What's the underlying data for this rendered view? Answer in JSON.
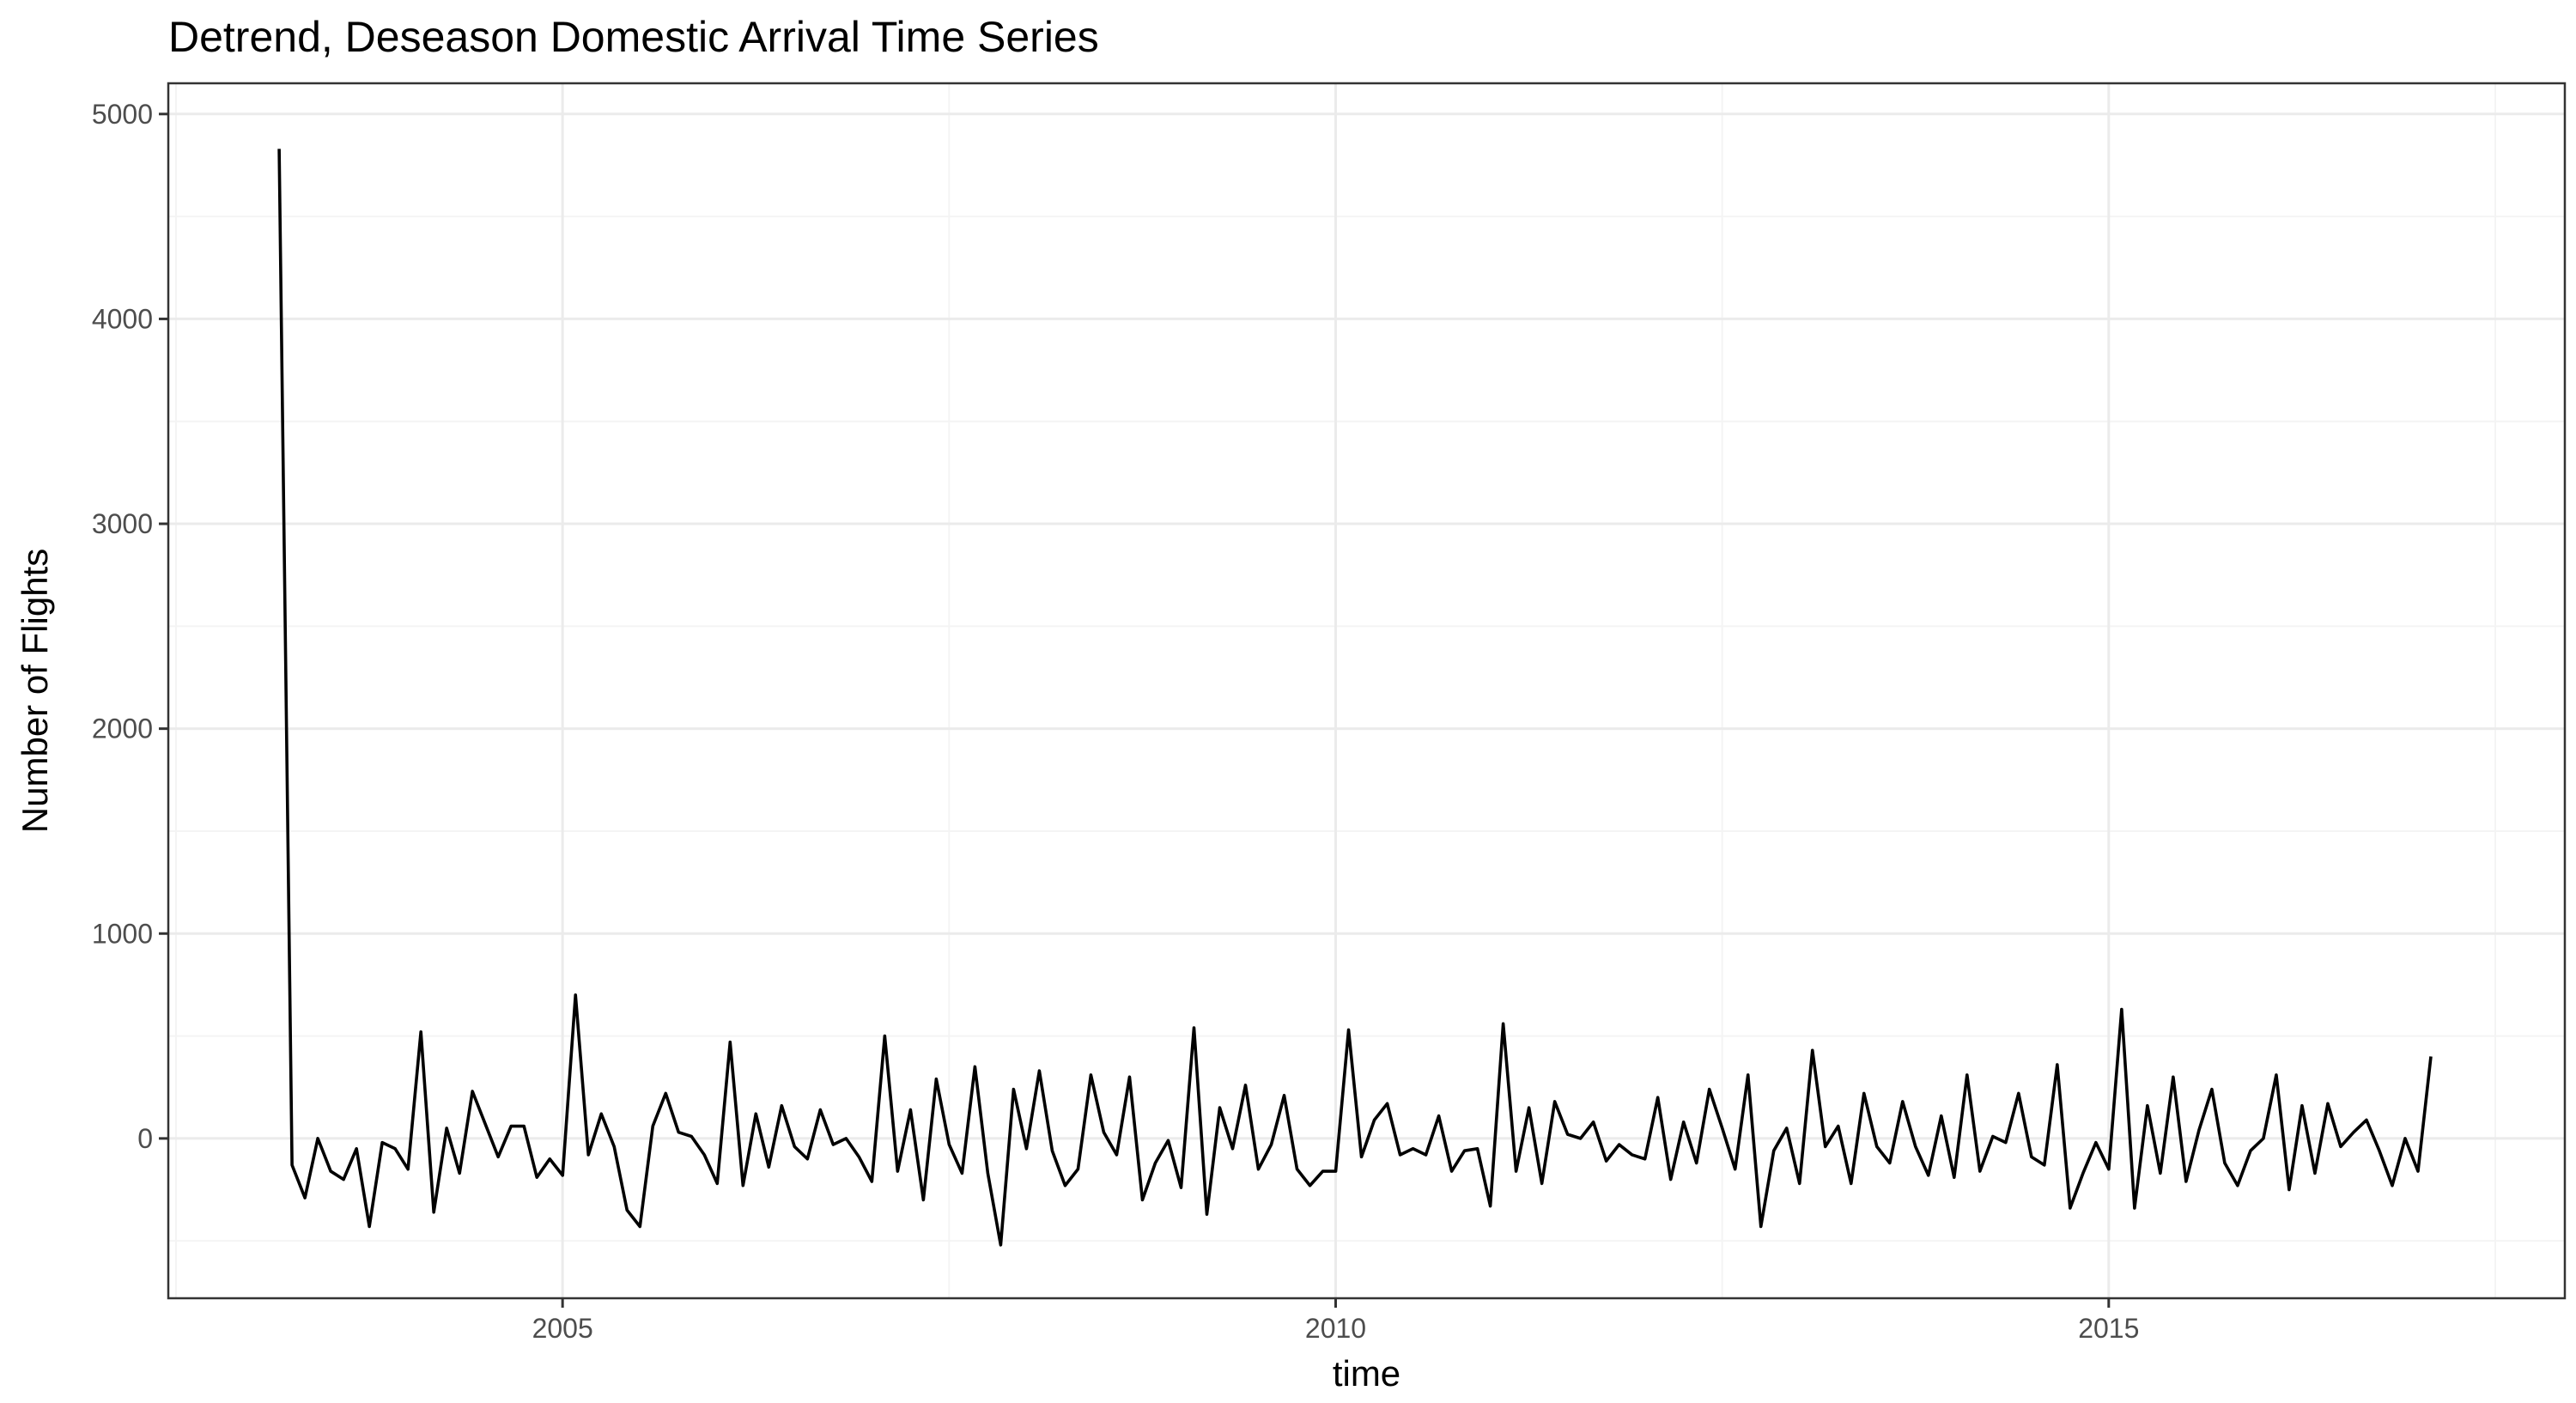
{
  "chart_data": {
    "type": "line",
    "title": "Detrend, Deseason  Domestic Arrival Time Series",
    "xlabel": "time",
    "ylabel": "Number of Flights",
    "x_start": 2003.167,
    "x_step": 0.0833333,
    "xlim": [
      2002.45,
      2017.95
    ],
    "ylim": [
      -780,
      5150
    ],
    "x_ticks": [
      2005,
      2010,
      2015
    ],
    "x_tick_labels": [
      "2005",
      "2010",
      "2015"
    ],
    "y_ticks": [
      0,
      1000,
      2000,
      3000,
      4000,
      5000
    ],
    "y_tick_labels": [
      "0",
      "1000",
      "2000",
      "3000",
      "4000",
      "5000"
    ],
    "grid": true,
    "legend": "none",
    "line_color": "#000000",
    "series": [
      {
        "values": [
          4830,
          -130,
          -290,
          0,
          -160,
          -200,
          -50,
          -430,
          -20,
          -50,
          -150,
          520,
          -360,
          50,
          -170,
          230,
          70,
          -90,
          60,
          60,
          -190,
          -100,
          -180,
          700,
          -80,
          120,
          -40,
          -350,
          -430,
          60,
          220,
          30,
          10,
          -80,
          -220,
          470,
          -230,
          120,
          -140,
          160,
          -40,
          -100,
          140,
          -30,
          0,
          -90,
          -210,
          500,
          -160,
          140,
          -300,
          290,
          -30,
          -170,
          350,
          -170,
          -520,
          240,
          -50,
          330,
          -60,
          -230,
          -150,
          310,
          30,
          -80,
          300,
          -300,
          -120,
          -10,
          -240,
          540,
          -370,
          150,
          -50,
          260,
          -150,
          -30,
          210,
          -150,
          -230,
          -160,
          -160,
          530,
          -90,
          90,
          170,
          -80,
          -50,
          -80,
          110,
          -160,
          -60,
          -50,
          -330,
          560,
          -160,
          150,
          -220,
          180,
          20,
          0,
          80,
          -110,
          -30,
          -80,
          -100,
          200,
          -200,
          80,
          -120,
          240,
          50,
          -150,
          310,
          -430,
          -60,
          50,
          -220,
          430,
          -40,
          60,
          -220,
          220,
          -40,
          -120,
          180,
          -40,
          -180,
          110,
          -190,
          310,
          -160,
          10,
          -20,
          220,
          -90,
          -130,
          360,
          -340,
          -170,
          -20,
          -150,
          630,
          -340,
          160,
          -170,
          300,
          -210,
          40,
          240,
          -120,
          -230,
          -60,
          0,
          310,
          -250,
          160,
          -170,
          170,
          -40,
          30,
          90,
          -60,
          -230,
          0,
          -160,
          400
        ]
      }
    ]
  }
}
